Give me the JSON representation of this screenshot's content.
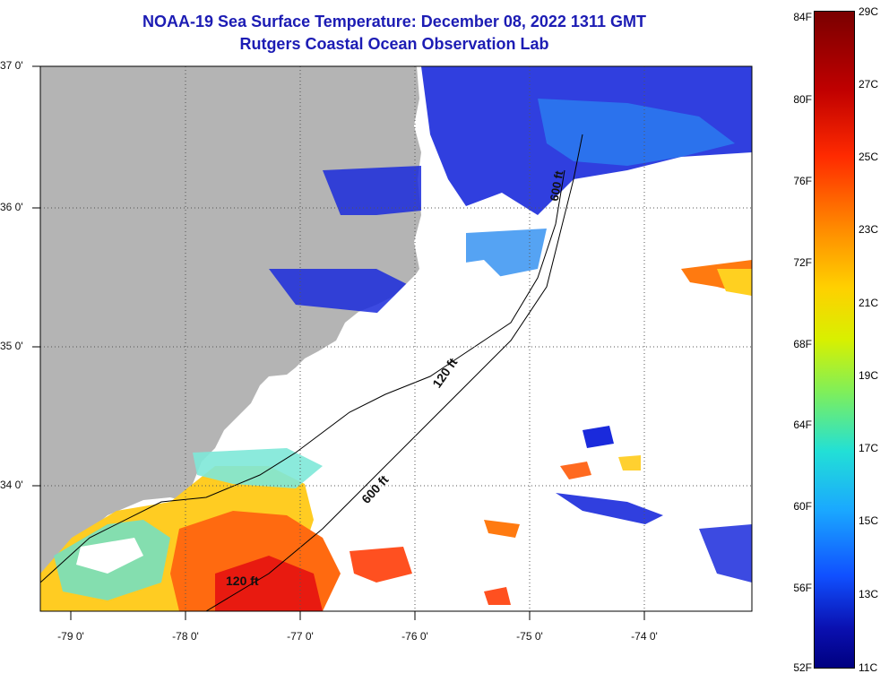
{
  "title": {
    "line1": "NOAA-19 Sea Surface Temperature:  December 08, 2022 1311 GMT",
    "line2": "Rutgers Coastal Ocean Observation Lab"
  },
  "map": {
    "lat_labels": [
      "37 0'",
      "36 0'",
      "35 0'",
      "34 0'"
    ],
    "lon_labels": [
      "-79 0'",
      "-78 0'",
      "-77 0'",
      "-76 0'",
      "-75 0'",
      "-74 0'"
    ],
    "contours": [
      "120 ft",
      "600 ft",
      "120 ft",
      "600 ft"
    ],
    "colors": {
      "land": "#b4b4b4",
      "cloud": "#ffffff",
      "frame": "#000000"
    }
  },
  "colorbar": {
    "fahrenheit": [
      "84F",
      "80F",
      "76F",
      "72F",
      "68F",
      "64F",
      "60F",
      "56F",
      "52F"
    ],
    "celsius": [
      "29C",
      "27C",
      "25C",
      "23C",
      "21C",
      "19C",
      "17C",
      "15C",
      "13C",
      "11C"
    ]
  }
}
